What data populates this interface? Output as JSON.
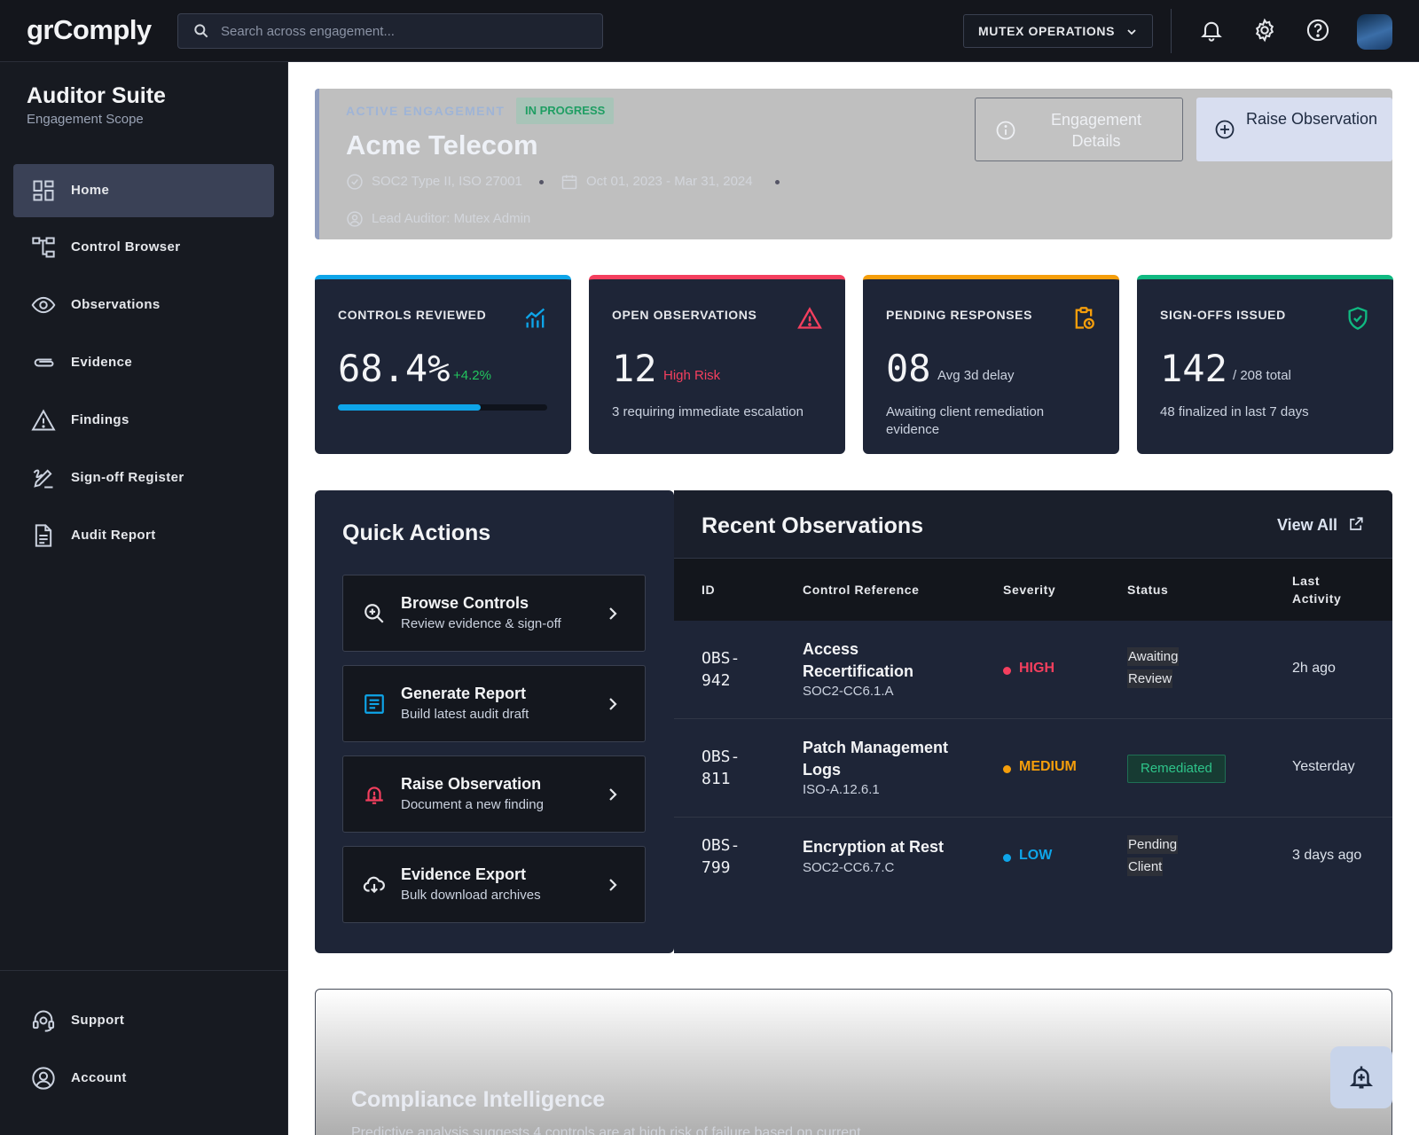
{
  "topbar": {
    "brand": "grComply",
    "search_placeholder": "Search across engagement...",
    "org_label": "MUTEX OPERATIONS",
    "icons": [
      "bell-icon",
      "gear-icon",
      "help-icon",
      "avatar"
    ]
  },
  "sidebar": {
    "title": "Auditor Suite",
    "subtitle": "Engagement Scope",
    "items": [
      {
        "label": "Home",
        "icon": "dashboard-icon",
        "active": true
      },
      {
        "label": "Control Browser",
        "icon": "hierarchy-icon"
      },
      {
        "label": "Observations",
        "icon": "eye-icon"
      },
      {
        "label": "Evidence",
        "icon": "paperclip-icon"
      },
      {
        "label": "Findings",
        "icon": "warning-icon"
      },
      {
        "label": "Sign-off Register",
        "icon": "signature-icon"
      },
      {
        "label": "Audit Report",
        "icon": "document-icon"
      }
    ],
    "bottom_items": [
      {
        "label": "Support",
        "icon": "headset-icon"
      },
      {
        "label": "Account",
        "icon": "user-circle-icon"
      }
    ]
  },
  "engagement": {
    "kicker": "ACTIVE ENGAGEMENT",
    "badge": "IN PROGRESS",
    "title": "Acme Telecom",
    "frameworks": "SOC2 Type II, ISO 27001",
    "period": "Oct 01, 2023 - Mar 31, 2024",
    "lead": "Lead Auditor: Mutex Admin",
    "details_button": "Engagement Details",
    "raise_button": "Raise Observation"
  },
  "stats": [
    {
      "title": "CONTROLS REVIEWED",
      "value": "68.4%",
      "tag": "+4.2%",
      "progress": 0.684,
      "accent": "#0ea5e9",
      "tag_color": "#22c55e",
      "icon": "chart-icon"
    },
    {
      "title": "OPEN OBSERVATIONS",
      "value": "12",
      "tag": "High Risk",
      "desc": "3 requiring immediate escalation",
      "accent": "#f43f5e",
      "tag_color": "#f43f5e",
      "icon": "alert-triangle-icon"
    },
    {
      "title": "PENDING RESPONSES",
      "value": "08",
      "tag": "Avg 3d delay",
      "desc": "Awaiting client remediation evidence",
      "accent": "#f59e0b",
      "tag_color": "#cbd2df",
      "icon": "clipboard-clock-icon"
    },
    {
      "title": "SIGN-OFFS ISSUED",
      "value": "142",
      "tag": "/ 208 total",
      "desc": "48 finalized in last 7 days",
      "accent": "#10b981",
      "tag_color": "#cbd2df",
      "icon": "shield-check-icon"
    }
  ],
  "quick_actions": {
    "title": "Quick Actions",
    "items": [
      {
        "title": "Browse Controls",
        "subtitle": "Review evidence & sign-off",
        "icon": "search-zoom-icon"
      },
      {
        "title": "Generate Report",
        "subtitle": "Build latest audit draft",
        "icon": "report-icon"
      },
      {
        "title": "Raise Observation",
        "subtitle": "Document a new finding",
        "icon": "alarm-icon"
      },
      {
        "title": "Evidence Export",
        "subtitle": "Bulk download archives",
        "icon": "cloud-download-icon"
      }
    ]
  },
  "recent": {
    "title": "Recent Observations",
    "view_all": "View All",
    "columns": [
      "ID",
      "Control Reference",
      "Severity",
      "Status",
      "Last Activity"
    ],
    "rows": [
      {
        "id": "OBS-942",
        "control": "Access Recertification",
        "ref": "SOC2-CC6.1.A",
        "severity": "HIGH",
        "sev_color": "#f43f5e",
        "status": "Awaiting Review",
        "last": "2h ago"
      },
      {
        "id": "OBS-811",
        "control": "Patch Management Logs",
        "ref": "ISO-A.12.6.1",
        "severity": "MEDIUM",
        "sev_color": "#f59e0b",
        "status": "Remediated",
        "last": "Yesterday"
      },
      {
        "id": "OBS-799",
        "control": "Encryption at Rest",
        "ref": "SOC2-CC6.7.C",
        "severity": "LOW",
        "sev_color": "#0ea5e9",
        "status": "Pending Client",
        "last": "3 days ago"
      }
    ]
  },
  "intelligence": {
    "title": "Compliance Intelligence",
    "text": "Predictive analysis suggests 4 controls are at high risk of failure based on current"
  }
}
